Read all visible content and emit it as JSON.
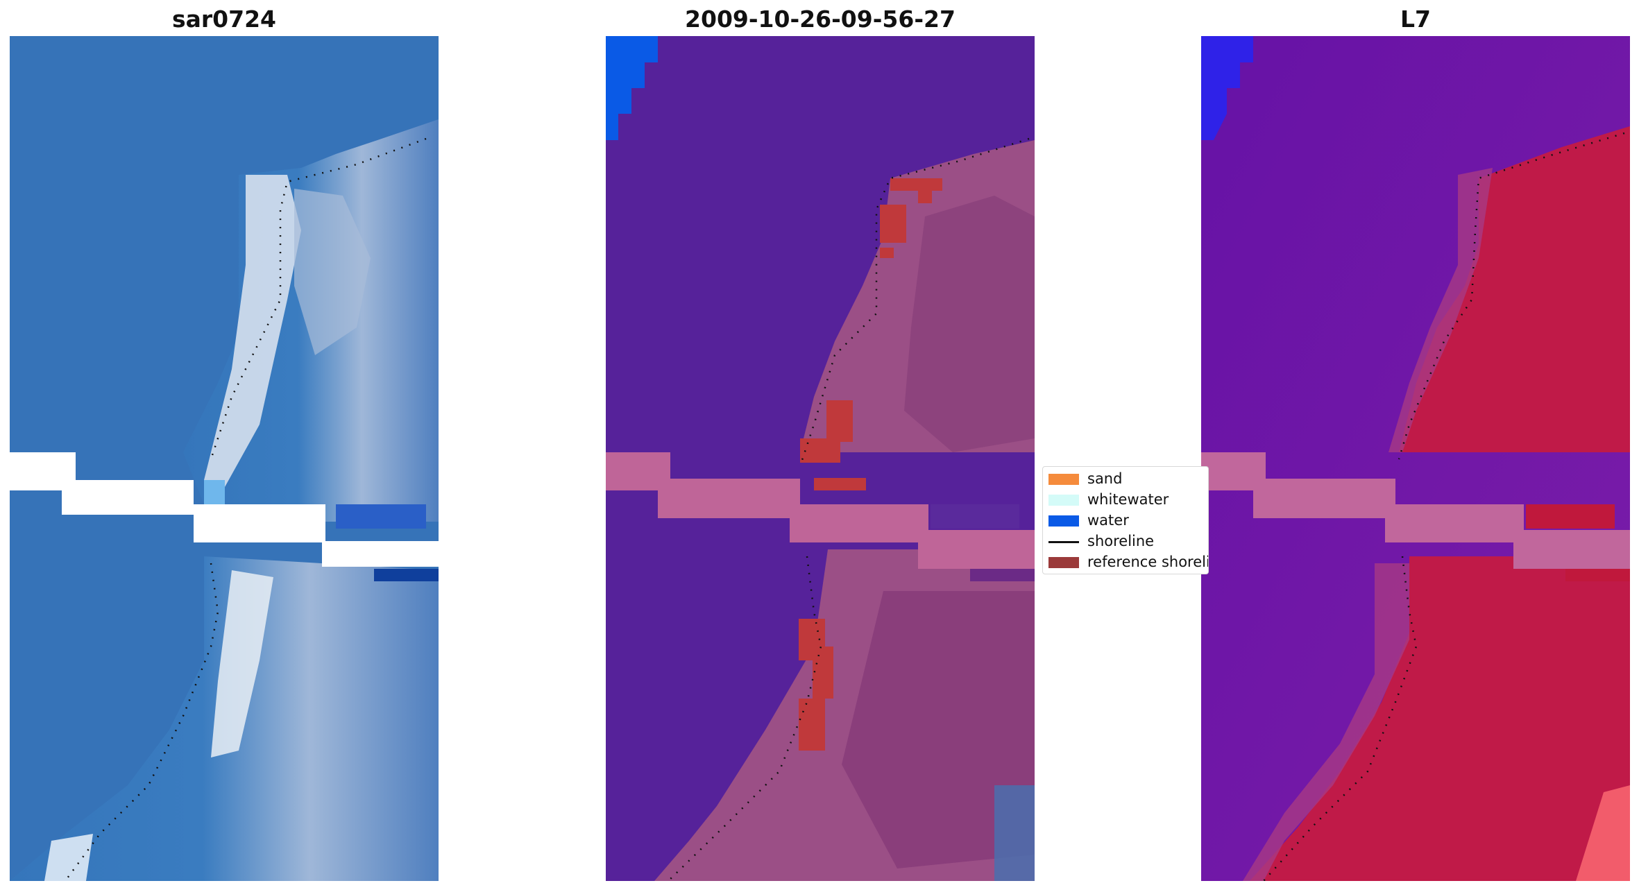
{
  "panels": [
    {
      "title": "sar0724"
    },
    {
      "title": "2009-10-26-09-56-27"
    },
    {
      "title": "L7"
    }
  ],
  "legend": {
    "items": [
      {
        "label": "sand",
        "color": "#f58b3c",
        "kind": "patch"
      },
      {
        "label": "whitewater",
        "color": "#d4fbf8",
        "kind": "patch"
      },
      {
        "label": "water",
        "color": "#0a5ae6",
        "kind": "patch"
      },
      {
        "label": "shoreline",
        "color": "#111111",
        "kind": "line"
      },
      {
        "label": "reference shoreline",
        "color": "#9b3a3a",
        "kind": "patch"
      }
    ]
  },
  "colors": {
    "rgb_water": "#3a73b8",
    "rgb_sand": "#c8d8ea",
    "class_water_bg": "#56229a",
    "class_land": "#9b4f86",
    "class_gap": "#bf6598",
    "ref_shoreline": "#c0393b",
    "ndwi_water": "#5f0fa0",
    "ndwi_land": "#c01a48",
    "ndwi_gap": "#c1679c",
    "blue_corner": "#0a5ae6"
  }
}
